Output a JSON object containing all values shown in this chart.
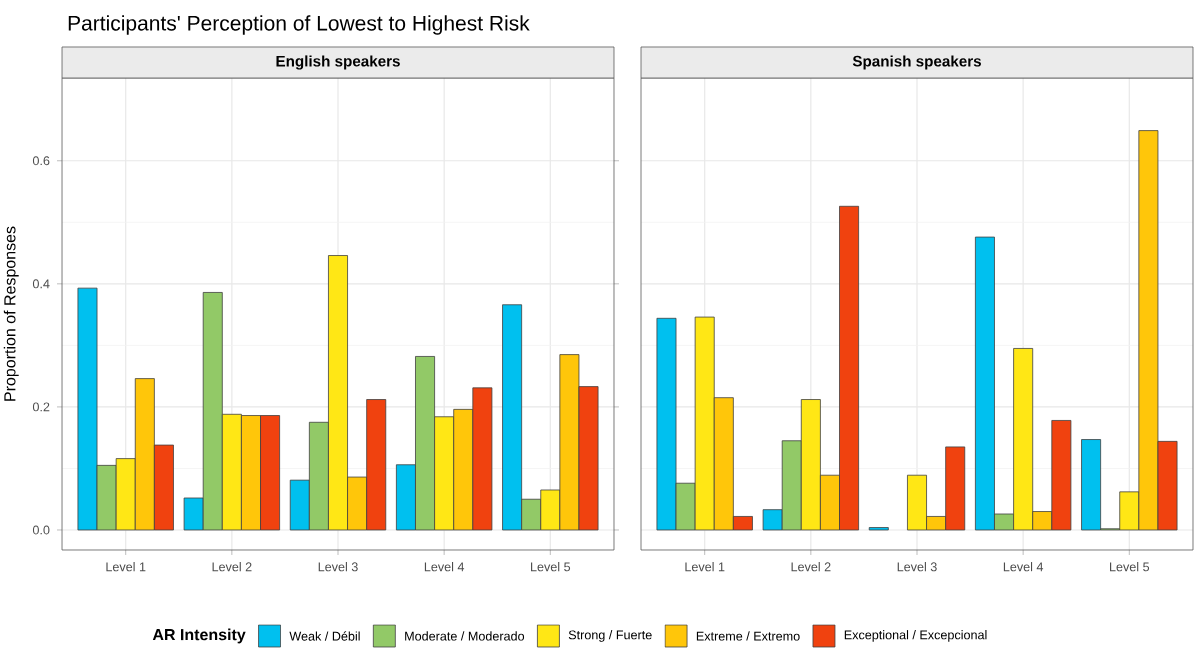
{
  "chart_data": [
    {
      "type": "bar",
      "title": "Participants' Perception of Lowest to Highest Risk",
      "subtitle": "English speakers",
      "ylabel": "Proportion of Responses",
      "legend_title": "AR Intensity",
      "categories": [
        "Level 1",
        "Level 2",
        "Level 3",
        "Level 4",
        "Level 5"
      ],
      "ylim": [
        -0.0325,
        0.7345
      ],
      "yticks": [
        {
          "value": 0,
          "label": "0.0"
        },
        0.2,
        0.4,
        0.6
      ],
      "grid": true,
      "legend": "bottom",
      "series": [
        {
          "name": "Weak / Débil",
          "color": "#00c0ef",
          "values": [
            0.393,
            0.052,
            0.081,
            0.106,
            0.366
          ]
        },
        {
          "name": "Moderate / Moderado",
          "color": "#92c967",
          "values": [
            0.105,
            0.386,
            0.175,
            0.282,
            0.05
          ]
        },
        {
          "name": "Strong / Fuerte",
          "color": "#ffe715",
          "values": [
            0.116,
            0.188,
            0.446,
            0.184,
            0.065
          ]
        },
        {
          "name": "Extreme / Extremo",
          "color": "#ffc60a",
          "values": [
            0.246,
            0.186,
            0.086,
            0.196,
            0.285
          ]
        },
        {
          "name": "Exceptional / Excepcional",
          "color": "#f0420f",
          "values": [
            0.138,
            0.186,
            0.212,
            0.231,
            0.233
          ]
        }
      ]
    },
    {
      "type": "bar",
      "subtitle": "Spanish speakers",
      "categories": [
        "Level 1",
        "Level 2",
        "Level 3",
        "Level 4",
        "Level 5"
      ],
      "ylim": [
        -0.0325,
        0.7345
      ],
      "yticks": [
        {
          "value": 0,
          "label": null
        },
        {
          "value": 0.2,
          "label": null
        },
        {
          "value": 0.4,
          "label": null
        },
        {
          "value": 0.6,
          "label": null
        }
      ],
      "grid": true,
      "tick_labels": "x",
      "series": [
        {
          "color": "#00c0ef",
          "values": [
            0.344,
            0.033,
            0.004,
            0.476,
            0.147
          ]
        },
        {
          "color": "#92c967",
          "values": [
            0.076,
            0.145,
            null,
            0.026,
            0.002
          ]
        },
        {
          "color": "#ffe715",
          "values": [
            0.346,
            0.212,
            0.089,
            0.295,
            0.062
          ]
        },
        {
          "color": "#ffc60a",
          "values": [
            0.215,
            0.089,
            0.022,
            0.03,
            0.649
          ]
        },
        {
          "color": "#f0420f",
          "values": [
            0.022,
            0.526,
            0.135,
            0.178,
            0.144
          ]
        }
      ]
    }
  ]
}
